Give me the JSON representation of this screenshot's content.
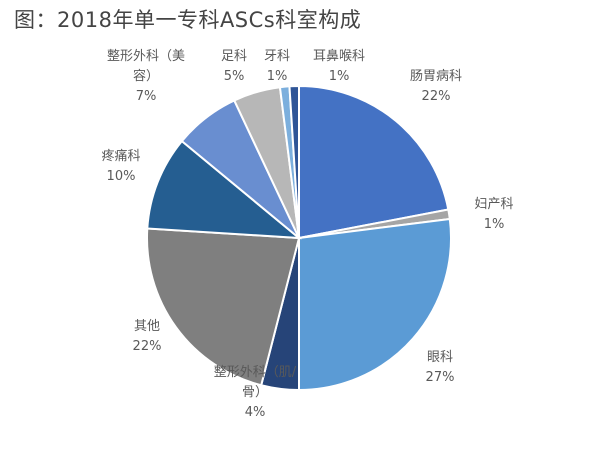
{
  "chart_data": {
    "type": "pie",
    "title": "图：2018年单一专科ASCs科室构成",
    "slices": [
      {
        "name": "肠胃病科",
        "value": 22,
        "value_label": "22%",
        "color": "#4472C4"
      },
      {
        "name": "妇产科",
        "value": 1,
        "value_label": "1%",
        "color": "#A5A5A5"
      },
      {
        "name": "眼科",
        "value": 27,
        "value_label": "27%",
        "color": "#5B9BD5"
      },
      {
        "name": "整形外科（肌/骨）",
        "value": 4,
        "value_label": "4%",
        "color": "#264478"
      },
      {
        "name": "其他",
        "value": 22,
        "value_label": "22%",
        "color": "#7F7F7F"
      },
      {
        "name": "疼痛科",
        "value": 10,
        "value_label": "10%",
        "color": "#255E91"
      },
      {
        "name": "整形外科（美容）",
        "value": 7,
        "value_label": "7%",
        "color": "#698ED0"
      },
      {
        "name": "足科",
        "value": 5,
        "value_label": "5%",
        "color": "#B7B7B7"
      },
      {
        "name": "牙科",
        "value": 1,
        "value_label": "1%",
        "color": "#7CAFDD"
      },
      {
        "name": "耳鼻喉科",
        "value": 1,
        "value_label": "1%",
        "color": "#2F5597"
      }
    ]
  }
}
